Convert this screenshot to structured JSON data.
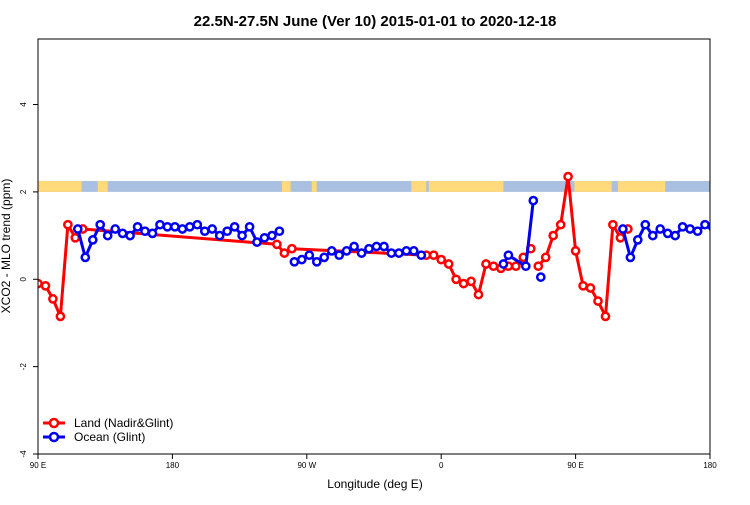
{
  "chart_data": {
    "type": "line",
    "title": "22.5N-27.5N June (Ver 10)   2015-01-01 to 2020-12-18",
    "xlabel": "Longitude (deg E)",
    "ylabel": "XCO2 - MLO trend (ppm)",
    "xlim": [
      -90,
      180
    ],
    "ylim": [
      -4,
      5.5
    ],
    "x_ticks": [
      {
        "value": -90,
        "label": "90 E"
      },
      {
        "value": -36,
        "label": "180"
      },
      {
        "value": 18,
        "label": "90 W"
      },
      {
        "value": 72,
        "label": "0"
      },
      {
        "value": 126,
        "label": "90 E"
      },
      {
        "value": 180,
        "label": "180"
      }
    ],
    "y_ticks": [
      {
        "value": -4,
        "label": "-4"
      },
      {
        "value": -2,
        "label": "-2"
      },
      {
        "value": 0,
        "label": "0"
      },
      {
        "value": 2,
        "label": "2"
      },
      {
        "value": 4,
        "label": "4"
      }
    ],
    "grid": false,
    "legend_position": "bottom-left",
    "colors": {
      "land": "#ff0000",
      "ocean": "#0000ee",
      "land_band": "#ffd97a",
      "ocean_band": "#a9c0e0"
    },
    "surface_band": {
      "y_range": [
        2.0,
        2.25
      ],
      "land_segments": [
        [
          -90,
          -72.5
        ],
        [
          -66,
          -62
        ],
        [
          8,
          11.5
        ],
        [
          20,
          22
        ],
        [
          60,
          66
        ],
        [
          67,
          97
        ],
        [
          125.5,
          140.5
        ],
        [
          143,
          162
        ]
      ]
    },
    "series": [
      {
        "name": "Land (Nadir&Glint)",
        "color": "#ff0000",
        "points": [
          [
            -90,
            -0.1
          ],
          [
            -87,
            -0.15
          ],
          [
            -84,
            -0.45
          ],
          [
            -81,
            -0.85
          ],
          [
            -78,
            1.25
          ],
          [
            -75,
            0.95
          ],
          [
            -72,
            1.15
          ],
          [
            6,
            0.8
          ],
          [
            9,
            0.6
          ],
          [
            12,
            0.7
          ],
          [
            66,
            0.55
          ],
          [
            69,
            0.55
          ],
          [
            72,
            0.45
          ],
          [
            75,
            0.35
          ],
          [
            78,
            0.0
          ],
          [
            81,
            -0.1
          ],
          [
            84,
            -0.05
          ],
          [
            87,
            -0.35
          ],
          [
            90,
            0.35
          ],
          [
            93,
            0.3
          ],
          [
            96,
            0.25
          ],
          [
            99,
            0.3
          ],
          [
            102,
            0.3
          ],
          [
            105,
            0.5
          ],
          [
            108,
            0.7
          ],
          [
            null,
            null
          ],
          [
            111,
            0.3
          ],
          [
            114,
            0.5
          ],
          [
            117,
            1.0
          ],
          [
            120,
            1.25
          ],
          [
            123,
            2.35
          ],
          [
            126,
            0.65
          ],
          [
            129,
            -0.15
          ],
          [
            132,
            -0.2
          ],
          [
            135,
            -0.5
          ],
          [
            138,
            -0.85
          ],
          [
            141,
            1.25
          ],
          [
            144,
            0.95
          ],
          [
            147,
            1.15
          ]
        ]
      },
      {
        "name": "Ocean (Glint)",
        "color": "#0000ee",
        "points": [
          [
            -74,
            1.15
          ],
          [
            -71,
            0.5
          ],
          [
            -68,
            0.9
          ],
          [
            -65,
            1.25
          ],
          [
            -62,
            1.0
          ],
          [
            -59,
            1.15
          ],
          [
            -56,
            1.05
          ],
          [
            -53,
            1.0
          ],
          [
            -50,
            1.2
          ],
          [
            -47,
            1.1
          ],
          [
            -44,
            1.05
          ],
          [
            -41,
            1.25
          ],
          [
            -38,
            1.2
          ],
          [
            -35,
            1.2
          ],
          [
            -32,
            1.15
          ],
          [
            -29,
            1.2
          ],
          [
            -26,
            1.25
          ],
          [
            -23,
            1.1
          ],
          [
            -20,
            1.15
          ],
          [
            -17,
            1.0
          ],
          [
            -14,
            1.1
          ],
          [
            -11,
            1.2
          ],
          [
            -8,
            1.0
          ],
          [
            -5,
            1.2
          ],
          [
            -2,
            0.85
          ],
          [
            1,
            0.95
          ],
          [
            4,
            1.0
          ],
          [
            7,
            1.1
          ],
          [
            null,
            null
          ],
          [
            13,
            0.4
          ],
          [
            16,
            0.45
          ],
          [
            19,
            0.55
          ],
          [
            22,
            0.4
          ],
          [
            25,
            0.5
          ],
          [
            28,
            0.65
          ],
          [
            31,
            0.55
          ],
          [
            34,
            0.65
          ],
          [
            37,
            0.75
          ],
          [
            40,
            0.6
          ],
          [
            43,
            0.7
          ],
          [
            46,
            0.75
          ],
          [
            49,
            0.75
          ],
          [
            52,
            0.6
          ],
          [
            55,
            0.6
          ],
          [
            58,
            0.65
          ],
          [
            61,
            0.65
          ],
          [
            64,
            0.55
          ],
          [
            null,
            null
          ],
          [
            97,
            0.35
          ],
          [
            99,
            0.55
          ],
          [
            106,
            0.3
          ],
          [
            109,
            1.8
          ],
          [
            null,
            null
          ],
          [
            112,
            0.05
          ],
          [
            null,
            null
          ],
          [
            145,
            1.15
          ],
          [
            148,
            0.5
          ],
          [
            151,
            0.9
          ],
          [
            154,
            1.25
          ],
          [
            157,
            1.0
          ],
          [
            160,
            1.15
          ],
          [
            163,
            1.05
          ],
          [
            166,
            1.0
          ],
          [
            169,
            1.2
          ],
          [
            172,
            1.15
          ],
          [
            175,
            1.1
          ],
          [
            178,
            1.25
          ],
          [
            181,
            1.2
          ]
        ]
      }
    ]
  }
}
